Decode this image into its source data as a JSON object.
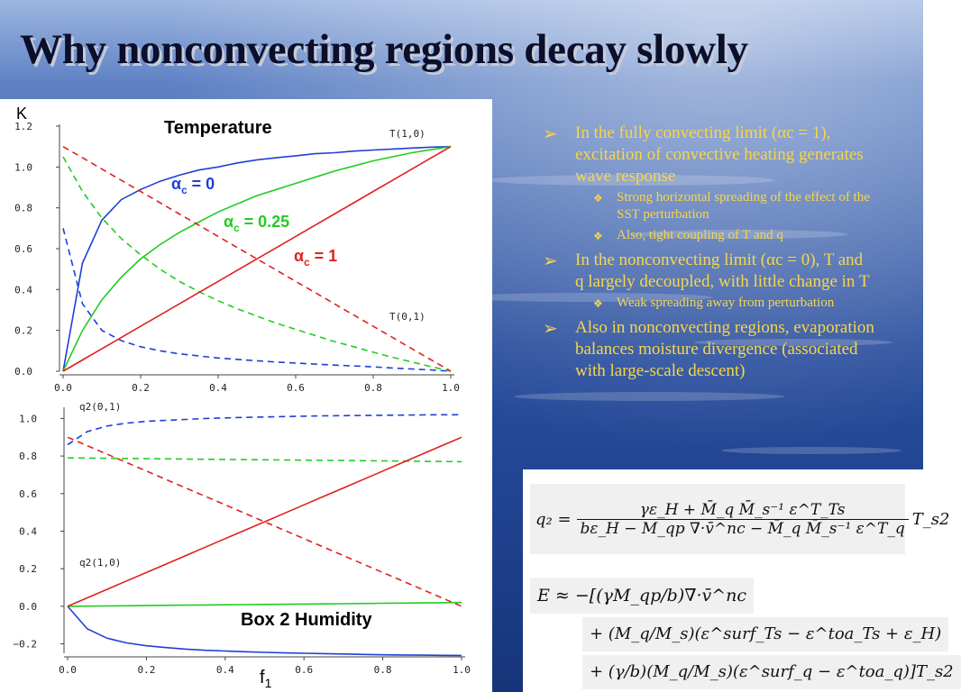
{
  "slide": {
    "title": "Why nonconvecting regions decay slowly"
  },
  "bullets": [
    {
      "text": "In the fully convecting limit (αc = 1), excitation of convective heating generates wave response",
      "sub": [
        "Strong horizontal spreading of the effect of the SST perturbation",
        "Also, tight coupling of T and q"
      ]
    },
    {
      "text": "In the nonconvecting limit (αc = 0), T and q largely decoupled, with little change in T",
      "sub": [
        "Weak spreading away from perturbation"
      ]
    },
    {
      "text": "Also in nonconvecting regions, evaporation balances moisture divergence (associated with large-scale descent)",
      "sub": []
    }
  ],
  "formulas": {
    "q2_lhs": "q₂ =",
    "q2_num": "γε_H + M̄_q M̄_s⁻¹ ε^T_Ts",
    "q2_den": "bε_H − M_qp ∇·v̄^nc − M̄_q M̄_s⁻¹ ε^T_q",
    "q2_rhs": "T_s2",
    "E_line1": "E ≈ −[(γM_qp/b)∇·v̄^nc",
    "E_line2": "+ (M_q/M_s)(ε^surf_Ts − ε^toa_Ts + ε_H)",
    "E_line3": "+ (γ/b)(M_q/M_s)(ε^surf_q − ε^toa_q)]T_s2"
  },
  "colors": {
    "title": "#0b0f2b",
    "bullet_text": "#f7d64a",
    "blue": "#1f3fd6",
    "green": "#22cc22",
    "red": "#e02020"
  },
  "chart_data": [
    {
      "type": "line",
      "title": "Temperature",
      "ylabel": "K",
      "xlim": [
        0,
        1
      ],
      "ylim": [
        0,
        1.2
      ],
      "xticks": [
        "0.0",
        "0.2",
        "0.4",
        "0.6",
        "0.8",
        "1.0"
      ],
      "yticks": [
        "0.0",
        "0.2",
        "0.4",
        "0.6",
        "0.8",
        "1.0",
        "1.2"
      ],
      "x": [
        0.0,
        0.05,
        0.1,
        0.15,
        0.2,
        0.25,
        0.3,
        0.35,
        0.4,
        0.45,
        0.5,
        0.55,
        0.6,
        0.65,
        0.7,
        0.75,
        0.8,
        0.85,
        0.9,
        0.95,
        1.0
      ],
      "end_labels": {
        "top": "T(1,0)",
        "bottom": "T(0,1)"
      },
      "annotations": [
        {
          "base": "α",
          "sub": "c",
          "rest": " = 0",
          "color": "#1f3fd6"
        },
        {
          "base": "α",
          "sub": "c",
          "rest": " = 0.25",
          "color": "#22cc22"
        },
        {
          "base": "α",
          "sub": "c",
          "rest": " = 1",
          "color": "#e02020"
        }
      ],
      "series": [
        {
          "alpha": "0",
          "kind": "T(1,0)",
          "dash": false,
          "color": "#1f3fd6",
          "values": [
            0.0,
            0.53,
            0.74,
            0.84,
            0.89,
            0.93,
            0.96,
            0.985,
            1.0,
            1.02,
            1.035,
            1.045,
            1.055,
            1.065,
            1.07,
            1.078,
            1.083,
            1.088,
            1.093,
            1.097,
            1.1
          ]
        },
        {
          "alpha": "0",
          "kind": "T(0,1)",
          "dash": true,
          "color": "#1f3fd6",
          "values": [
            0.7,
            0.33,
            0.2,
            0.15,
            0.12,
            0.1,
            0.085,
            0.075,
            0.065,
            0.058,
            0.051,
            0.045,
            0.04,
            0.035,
            0.03,
            0.026,
            0.021,
            0.016,
            0.011,
            0.006,
            0.0
          ]
        },
        {
          "alpha": "0.25",
          "kind": "T(1,0)",
          "dash": false,
          "color": "#22cc22",
          "values": [
            0.0,
            0.2,
            0.35,
            0.46,
            0.55,
            0.62,
            0.68,
            0.73,
            0.78,
            0.82,
            0.86,
            0.89,
            0.92,
            0.95,
            0.98,
            1.005,
            1.03,
            1.05,
            1.07,
            1.085,
            1.1
          ]
        },
        {
          "alpha": "0.25",
          "kind": "T(0,1)",
          "dash": true,
          "color": "#22cc22",
          "values": [
            1.05,
            0.88,
            0.75,
            0.65,
            0.57,
            0.5,
            0.44,
            0.39,
            0.345,
            0.305,
            0.27,
            0.235,
            0.205,
            0.175,
            0.145,
            0.12,
            0.093,
            0.068,
            0.045,
            0.022,
            0.0
          ]
        },
        {
          "alpha": "1",
          "kind": "T(1,0)",
          "dash": false,
          "color": "#e02020",
          "values": [
            0.0,
            0.055,
            0.11,
            0.165,
            0.22,
            0.275,
            0.33,
            0.385,
            0.44,
            0.495,
            0.55,
            0.605,
            0.66,
            0.715,
            0.77,
            0.825,
            0.88,
            0.935,
            0.99,
            1.045,
            1.1
          ]
        },
        {
          "alpha": "1",
          "kind": "T(0,1)",
          "dash": true,
          "color": "#e02020",
          "values": [
            1.1,
            1.045,
            0.99,
            0.935,
            0.88,
            0.825,
            0.77,
            0.715,
            0.66,
            0.605,
            0.55,
            0.495,
            0.44,
            0.385,
            0.33,
            0.275,
            0.22,
            0.165,
            0.11,
            0.055,
            0.0
          ]
        }
      ]
    },
    {
      "type": "line",
      "title": "Box 2 Humidity",
      "xlabel": "f",
      "xlabel_sub": "1",
      "xlim": [
        0,
        1
      ],
      "ylim": [
        -0.25,
        1.05
      ],
      "xticks": [
        "0.0",
        "0.2",
        "0.4",
        "0.6",
        "0.8",
        "1.0"
      ],
      "yticks": [
        "−0.2",
        "0.0",
        "0.2",
        "0.4",
        "0.6",
        "0.8",
        "1.0"
      ],
      "x": [
        0.0,
        0.05,
        0.1,
        0.15,
        0.2,
        0.25,
        0.3,
        0.35,
        0.4,
        0.45,
        0.5,
        0.55,
        0.6,
        0.65,
        0.7,
        0.75,
        0.8,
        0.85,
        0.9,
        0.95,
        1.0
      ],
      "end_labels": {
        "top": "q2(0,1)",
        "bottom": "q2(1,0)"
      },
      "series": [
        {
          "alpha": "0",
          "kind": "q2(0,1)",
          "dash": true,
          "color": "#1f3fd6",
          "values": [
            0.86,
            0.93,
            0.96,
            0.975,
            0.985,
            0.99,
            0.995,
            1.0,
            1.003,
            1.006,
            1.008,
            1.01,
            1.012,
            1.014,
            1.015,
            1.016,
            1.017,
            1.018,
            1.019,
            1.02,
            1.02
          ]
        },
        {
          "alpha": "0",
          "kind": "q2(1,0)",
          "dash": false,
          "color": "#1f3fd6",
          "values": [
            0.0,
            -0.12,
            -0.17,
            -0.195,
            -0.21,
            -0.22,
            -0.228,
            -0.234,
            -0.238,
            -0.242,
            -0.245,
            -0.248,
            -0.25,
            -0.252,
            -0.254,
            -0.256,
            -0.258,
            -0.259,
            -0.26,
            -0.261,
            -0.262
          ]
        },
        {
          "alpha": "0.25",
          "kind": "q2(0,1)",
          "dash": true,
          "color": "#22cc22",
          "values": [
            0.79,
            0.789,
            0.788,
            0.787,
            0.786,
            0.785,
            0.784,
            0.783,
            0.782,
            0.781,
            0.78,
            0.779,
            0.778,
            0.777,
            0.776,
            0.775,
            0.774,
            0.773,
            0.772,
            0.771,
            0.77
          ]
        },
        {
          "alpha": "0.25",
          "kind": "q2(1,0)",
          "dash": false,
          "color": "#22cc22",
          "values": [
            0.0,
            0.001,
            0.002,
            0.003,
            0.004,
            0.005,
            0.006,
            0.007,
            0.008,
            0.009,
            0.01,
            0.011,
            0.012,
            0.013,
            0.014,
            0.015,
            0.016,
            0.017,
            0.018,
            0.019,
            0.02
          ]
        },
        {
          "alpha": "1",
          "kind": "q2(0,1)",
          "dash": true,
          "color": "#e02020",
          "values": [
            0.9,
            0.855,
            0.81,
            0.765,
            0.72,
            0.675,
            0.63,
            0.585,
            0.54,
            0.495,
            0.45,
            0.405,
            0.36,
            0.315,
            0.27,
            0.225,
            0.18,
            0.135,
            0.09,
            0.045,
            0.0
          ]
        },
        {
          "alpha": "1",
          "kind": "q2(1,0)",
          "dash": false,
          "color": "#e02020",
          "values": [
            0.0,
            0.045,
            0.09,
            0.135,
            0.18,
            0.225,
            0.27,
            0.315,
            0.36,
            0.405,
            0.45,
            0.495,
            0.54,
            0.585,
            0.63,
            0.675,
            0.72,
            0.765,
            0.81,
            0.855,
            0.9
          ]
        }
      ]
    }
  ]
}
